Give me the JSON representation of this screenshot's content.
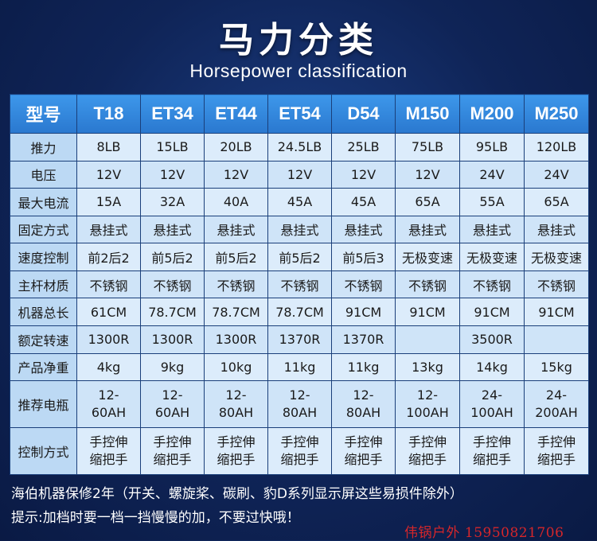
{
  "header": {
    "title": "马力分类",
    "subtitle": "Horsepower classification"
  },
  "table": {
    "label_header": "型号",
    "models": [
      "T18",
      "ET34",
      "ET44",
      "ET54",
      "D54",
      "M150",
      "M200",
      "M250"
    ],
    "rows": [
      {
        "label": "推力",
        "cells": [
          "8LB",
          "15LB",
          "20LB",
          "24.5LB",
          "25LB",
          "75LB",
          "95LB",
          "120LB"
        ]
      },
      {
        "label": "电压",
        "cells": [
          "12V",
          "12V",
          "12V",
          "12V",
          "12V",
          "12V",
          "24V",
          "24V"
        ]
      },
      {
        "label": "最大电流",
        "cells": [
          "15A",
          "32A",
          "40A",
          "45A",
          "45A",
          "65A",
          "55A",
          "65A"
        ]
      },
      {
        "label": "固定方式",
        "cells": [
          "悬挂式",
          "悬挂式",
          "悬挂式",
          "悬挂式",
          "悬挂式",
          "悬挂式",
          "悬挂式",
          "悬挂式"
        ]
      },
      {
        "label": "速度控制",
        "cells": [
          "前2后2",
          "前5后2",
          "前5后2",
          "前5后2",
          "前5后3",
          "无极变速",
          "无极变速",
          "无极变速"
        ]
      },
      {
        "label": "主杆材质",
        "cells": [
          "不锈钢",
          "不锈钢",
          "不锈钢",
          "不锈钢",
          "不锈钢",
          "不锈钢",
          "不锈钢",
          "不锈钢"
        ]
      },
      {
        "label": "机器总长",
        "cells": [
          "61CM",
          "78.7CM",
          "78.7CM",
          "78.7CM",
          "91CM",
          "91CM",
          "91CM",
          "91CM"
        ]
      },
      {
        "label": "额定转速",
        "cells": [
          "1300R",
          "1300R",
          "1300R",
          "1370R",
          "1370R",
          "",
          "3500R",
          ""
        ]
      },
      {
        "label": "产品净重",
        "cells": [
          "4kg",
          "9kg",
          "10kg",
          "11kg",
          "11kg",
          "13kg",
          "14kg",
          "15kg"
        ]
      },
      {
        "label": "推荐电瓶",
        "tall": true,
        "cells": [
          "12-\n60AH",
          "12-\n60AH",
          "12-\n80AH",
          "12-\n80AH",
          "12-\n80AH",
          "12-\n100AH",
          "24-\n100AH",
          "24-\n200AH"
        ]
      },
      {
        "label": "控制方式",
        "tall": true,
        "cells": [
          "手控伸\n缩把手",
          "手控伸\n缩把手",
          "手控伸\n缩把手",
          "手控伸\n缩把手",
          "手控伸\n缩把手",
          "手控伸\n缩把手",
          "手控伸\n缩把手",
          "手控伸\n缩把手"
        ]
      }
    ]
  },
  "footer": {
    "warranty": "海伯机器保修2年（开关、螺旋桨、碳刷、豹D系列显示屏这些易损件除外）",
    "tip": "提示:加档时要一档一挡慢慢的加，不要过快哦！"
  },
  "watermark": "伟锅户外 15950821706"
}
